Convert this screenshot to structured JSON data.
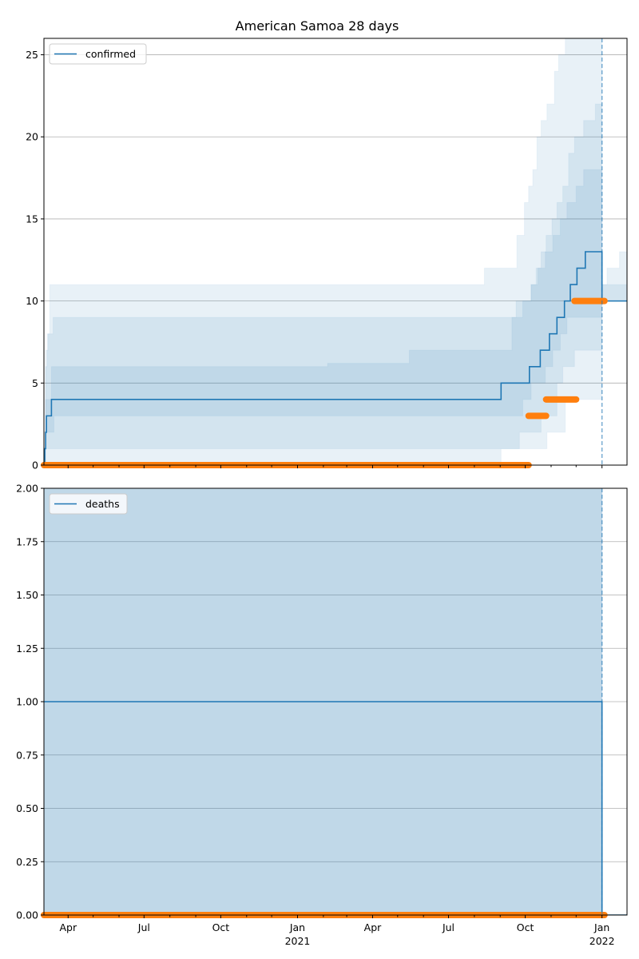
{
  "chart_data": [
    {
      "type": "line",
      "title": "American Samoa 28 days",
      "xlim": [
        "2020-03-03",
        "2022-01-31"
      ],
      "ylim": [
        0,
        26
      ],
      "yticks": [
        0,
        5,
        10,
        15,
        20,
        25
      ],
      "grid": "y",
      "legend": {
        "label": "confirmed",
        "placement": "top-left"
      },
      "forecast_date": "2022-01-01",
      "series_line": {
        "name": "confirmed",
        "steps": [
          [
            "2020-03-03",
            0
          ],
          [
            "2020-03-04",
            1
          ],
          [
            "2020-03-05",
            2
          ],
          [
            "2020-03-06",
            3
          ],
          [
            "2020-03-12",
            4
          ],
          [
            "2021-09-02",
            5
          ],
          [
            "2021-10-06",
            6
          ],
          [
            "2021-10-19",
            7
          ],
          [
            "2021-10-30",
            8
          ],
          [
            "2021-11-08",
            9
          ],
          [
            "2021-11-17",
            10
          ],
          [
            "2021-11-24",
            11
          ],
          [
            "2021-12-02",
            12
          ],
          [
            "2021-12-12",
            13
          ],
          [
            "2022-01-01",
            10
          ]
        ],
        "end": "2022-01-31"
      },
      "observed": [
        {
          "from": "2020-03-03",
          "to": "2021-10-05",
          "value": 0
        },
        {
          "from": "2021-10-05",
          "to": "2021-10-26",
          "value": 3
        },
        {
          "from": "2021-10-26",
          "to": "2021-12-01",
          "value": 4
        },
        {
          "from": "2021-11-29",
          "to": "2022-01-04",
          "value": 10
        }
      ],
      "bands": [
        {
          "end": "2022-01-01",
          "steps": [
            [
              "2020-03-03",
              0,
              0
            ],
            [
              "2020-03-05",
              0,
              6
            ],
            [
              "2020-03-07",
              0,
              8
            ],
            [
              "2020-03-10",
              0,
              11
            ],
            [
              "2021-08-13",
              0,
              12
            ],
            [
              "2021-09-02",
              1,
              12
            ],
            [
              "2021-09-21",
              1,
              14
            ],
            [
              "2021-09-30",
              1,
              16
            ],
            [
              "2021-10-05",
              1,
              17
            ],
            [
              "2021-10-10",
              1,
              18
            ],
            [
              "2021-10-15",
              1,
              20
            ],
            [
              "2021-10-20",
              1,
              21
            ],
            [
              "2021-10-27",
              2,
              22
            ],
            [
              "2021-11-05",
              2,
              24
            ],
            [
              "2021-11-10",
              2,
              25
            ],
            [
              "2021-11-18",
              4,
              26
            ],
            [
              "2021-11-25",
              4,
              28
            ]
          ]
        },
        {
          "end": "2022-01-01",
          "steps": [
            [
              "2020-03-03",
              0,
              0
            ],
            [
              "2020-03-05",
              1,
              7
            ],
            [
              "2020-03-08",
              1,
              8
            ],
            [
              "2020-03-14",
              1,
              9
            ],
            [
              "2021-09-20",
              1,
              10
            ],
            [
              "2021-09-24",
              2,
              10
            ],
            [
              "2021-10-08",
              2,
              11
            ],
            [
              "2021-10-14",
              2,
              12
            ],
            [
              "2021-10-20",
              3,
              13
            ],
            [
              "2021-10-26",
              3,
              14
            ],
            [
              "2021-11-02",
              3,
              15
            ],
            [
              "2021-11-08",
              5,
              16
            ],
            [
              "2021-11-15",
              6,
              17
            ],
            [
              "2021-11-22",
              6,
              19
            ],
            [
              "2021-11-29",
              7,
              20
            ],
            [
              "2021-12-10",
              7,
              21
            ],
            [
              "2021-12-24",
              7,
              22
            ]
          ]
        },
        {
          "end": "2022-01-01",
          "steps": [
            [
              "2020-03-03",
              0,
              0
            ],
            [
              "2020-03-05",
              2,
              4
            ],
            [
              "2020-03-12",
              2,
              6
            ],
            [
              "2020-03-15",
              3,
              6
            ],
            [
              "2021-02-06",
              3,
              6.2
            ],
            [
              "2021-05-15",
              3,
              7
            ],
            [
              "2021-09-15",
              3,
              9
            ],
            [
              "2021-09-28",
              4,
              10
            ],
            [
              "2021-10-08",
              5,
              11
            ],
            [
              "2021-10-16",
              5,
              12
            ],
            [
              "2021-10-25",
              6,
              13
            ],
            [
              "2021-11-03",
              7,
              14
            ],
            [
              "2021-11-12",
              8,
              15
            ],
            [
              "2021-11-20",
              9,
              16
            ],
            [
              "2021-12-01",
              9,
              17
            ],
            [
              "2021-12-10",
              9,
              18
            ]
          ]
        },
        {
          "end": "2022-01-31",
          "steps": [
            [
              "2022-01-01",
              10,
              11
            ],
            [
              "2022-01-07",
              10,
              12
            ],
            [
              "2022-01-22",
              10,
              13
            ]
          ]
        },
        {
          "end": "2022-01-31",
          "steps": [
            [
              "2022-01-01",
              10,
              11
            ]
          ]
        }
      ]
    },
    {
      "type": "line",
      "xlim": [
        "2020-03-03",
        "2022-01-31"
      ],
      "ylim": [
        0,
        2
      ],
      "yticks": [
        "0.00",
        "0.25",
        "0.50",
        "0.75",
        "1.00",
        "1.25",
        "1.50",
        "1.75",
        "2.00"
      ],
      "grid": "y",
      "legend": {
        "label": "deaths",
        "placement": "top-left"
      },
      "forecast_date": "2022-01-01",
      "series_line": {
        "name": "deaths",
        "steps": [
          [
            "2020-03-03",
            1
          ],
          [
            "2022-01-01",
            0
          ]
        ],
        "end": "2022-01-31"
      },
      "observed": [
        {
          "from": "2020-03-03",
          "to": "2022-01-04",
          "value": 0
        }
      ],
      "bands": [
        {
          "end": "2022-01-01",
          "steps": [
            [
              "2020-03-03",
              0,
              3
            ]
          ]
        },
        {
          "end": "2022-01-01",
          "steps": [
            [
              "2020-03-03",
              0,
              3
            ]
          ]
        },
        {
          "end": "2022-01-01",
          "steps": [
            [
              "2020-03-03",
              0,
              3
            ]
          ]
        }
      ],
      "xticks": [
        {
          "date": "2020-04-01",
          "label": "Apr",
          "year": ""
        },
        {
          "date": "2020-07-01",
          "label": "Jul",
          "year": ""
        },
        {
          "date": "2020-10-01",
          "label": "Oct",
          "year": ""
        },
        {
          "date": "2021-01-01",
          "label": "Jan",
          "year": "2021"
        },
        {
          "date": "2021-04-01",
          "label": "Apr",
          "year": ""
        },
        {
          "date": "2021-07-01",
          "label": "Jul",
          "year": ""
        },
        {
          "date": "2021-10-01",
          "label": "Oct",
          "year": ""
        },
        {
          "date": "2022-01-01",
          "label": "Jan",
          "year": "2022"
        }
      ]
    }
  ],
  "colors": {
    "line": "#1f77b4",
    "observed": "#ff7f0e",
    "band": "#1f77b4",
    "grid": "#b0b0b0"
  }
}
